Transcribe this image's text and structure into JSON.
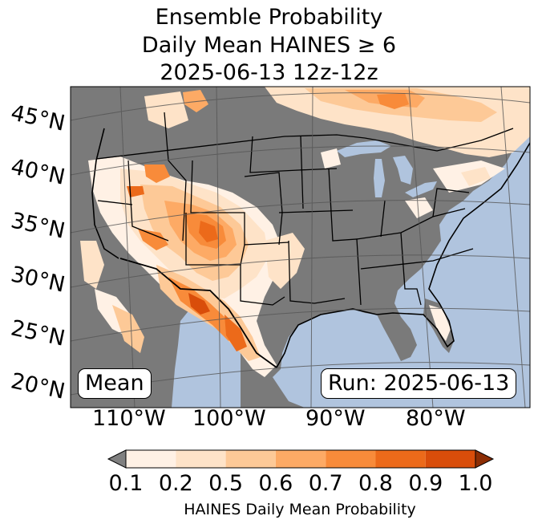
{
  "title": {
    "line1": "Ensemble Probability",
    "line2": "Daily Mean HAINES ≥ 6",
    "line3": "2025-06-13 12z-12z"
  },
  "map": {
    "lat_labels": [
      "45°N",
      "40°N",
      "35°N",
      "30°N",
      "25°N",
      "20°N"
    ],
    "lon_labels": [
      "110°W",
      "100°W",
      "90°W",
      "80°W"
    ],
    "stat_box": "Mean",
    "run_box": "Run: 2025-06-13",
    "ocean_color": "#b0c4de",
    "no_data_color": "#808080"
  },
  "colorbar": {
    "ticks": [
      "0.1",
      "0.2",
      "0.5",
      "0.6",
      "0.7",
      "0.8",
      "0.9",
      "1.0"
    ],
    "label": "HAINES Daily Mean Probability",
    "colors": [
      "#fff1e5",
      "#fee3c8",
      "#fdc997",
      "#fdaa65",
      "#f88b3a",
      "#ec6a1a",
      "#d94d0a"
    ],
    "under_color": "#808080",
    "over_color": "#8c2d04"
  }
}
